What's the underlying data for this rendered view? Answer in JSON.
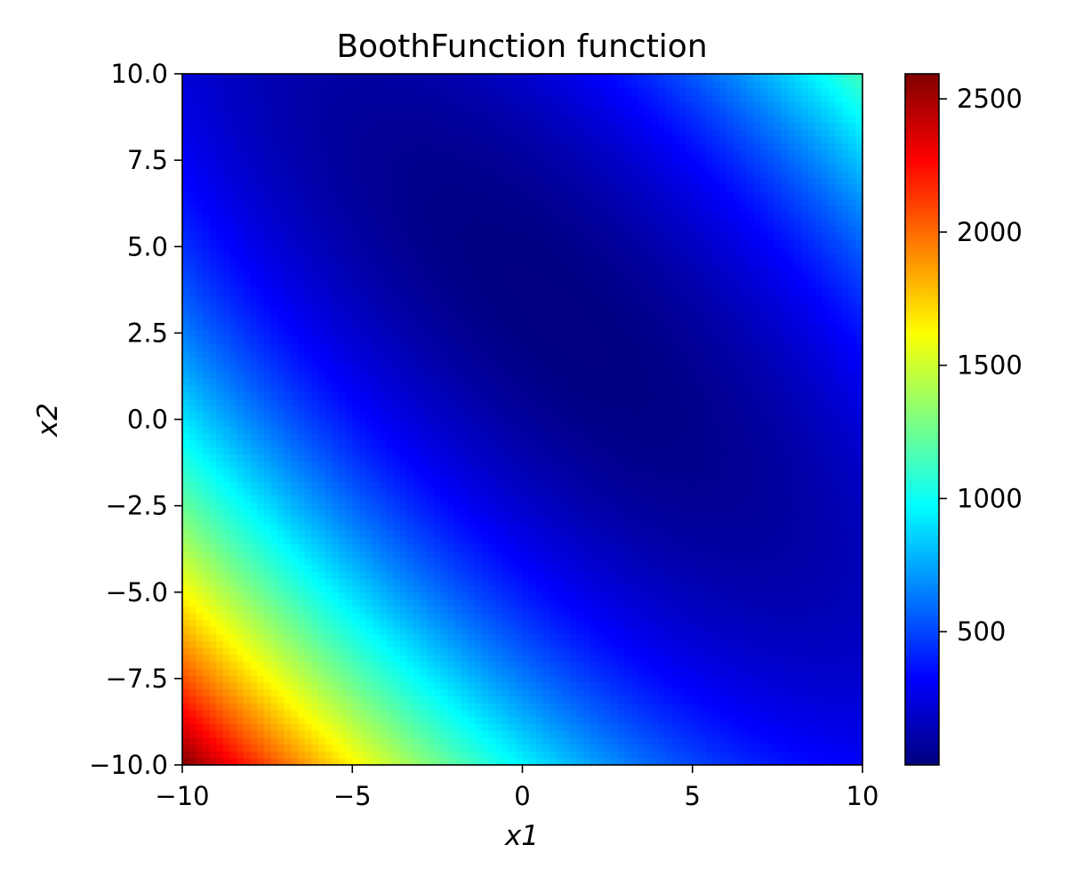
{
  "chart_data": {
    "type": "heatmap",
    "title": "BoothFunction function",
    "xlabel": "x1",
    "ylabel": "x2",
    "function": "(x1 + 2*x2 - 7)^2 + (2*x1 + x2 - 5)^2",
    "colormap": "jet",
    "xlim": [
      -10,
      10
    ],
    "ylim": [
      -10,
      10
    ],
    "grid_size": 100,
    "grid": false,
    "x_ticks": [
      -10,
      -5,
      0,
      5,
      10
    ],
    "x_tick_labels": [
      "−10",
      "−5",
      "0",
      "5",
      "10"
    ],
    "y_ticks": [
      10.0,
      7.5,
      5.0,
      2.5,
      0.0,
      -2.5,
      -5.0,
      -7.5,
      -10.0
    ],
    "y_tick_labels": [
      "10.0",
      "7.5",
      "5.0",
      "2.5",
      "0.0",
      "−2.5",
      "−5.0",
      "−7.5",
      "−10.0"
    ],
    "colorbar": {
      "min": 0,
      "max": 2594,
      "ticks": [
        500,
        1000,
        1500,
        2000,
        2500
      ],
      "tick_labels": [
        "500",
        "1000",
        "1500",
        "2000",
        "2500"
      ],
      "placement": "right"
    }
  }
}
